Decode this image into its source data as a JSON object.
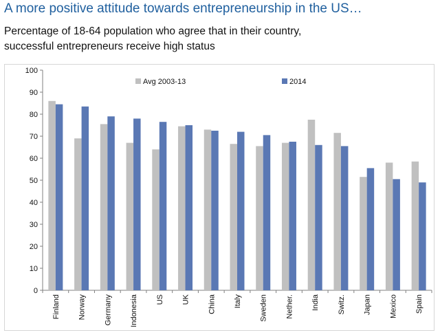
{
  "header": {
    "title": "A more positive attitude towards entrepreneurship in the US…",
    "subtitle_line1": "Percentage of 18-64 population who agree that in their country,",
    "subtitle_line2": "successful entrepreneurs receive high status"
  },
  "colors": {
    "avg": "#c0c0c0",
    "y2014": "#5a78b4",
    "axis": "#7f7f7f"
  },
  "chart_data": {
    "type": "bar",
    "title": "Percentage of 18-64 population who agree that in their country, successful entrepreneurs receive high status",
    "xlabel": "",
    "ylabel": "",
    "ylim": [
      0,
      100
    ],
    "yticks": [
      0,
      10,
      20,
      30,
      40,
      50,
      60,
      70,
      80,
      90,
      100
    ],
    "grid": false,
    "legend_position": "top",
    "categories": [
      "Finland",
      "Norway",
      "Germany",
      "Indonesia",
      "US",
      "UK",
      "China",
      "Italy",
      "Sweden",
      "Nether.",
      "India",
      "Switz.",
      "Japan",
      "Mexico",
      "Spain"
    ],
    "series": [
      {
        "name": "Avg 2003-13",
        "values": [
          86,
          69,
          75.5,
          67,
          64,
          74.5,
          73,
          66.5,
          65.5,
          67,
          77.5,
          71.5,
          51.5,
          58,
          58.5
        ]
      },
      {
        "name": "2014",
        "values": [
          84.5,
          83.5,
          79,
          78,
          76.5,
          75,
          72.5,
          72,
          70.5,
          67.5,
          66,
          65.5,
          55.5,
          50.5,
          49
        ]
      }
    ]
  }
}
